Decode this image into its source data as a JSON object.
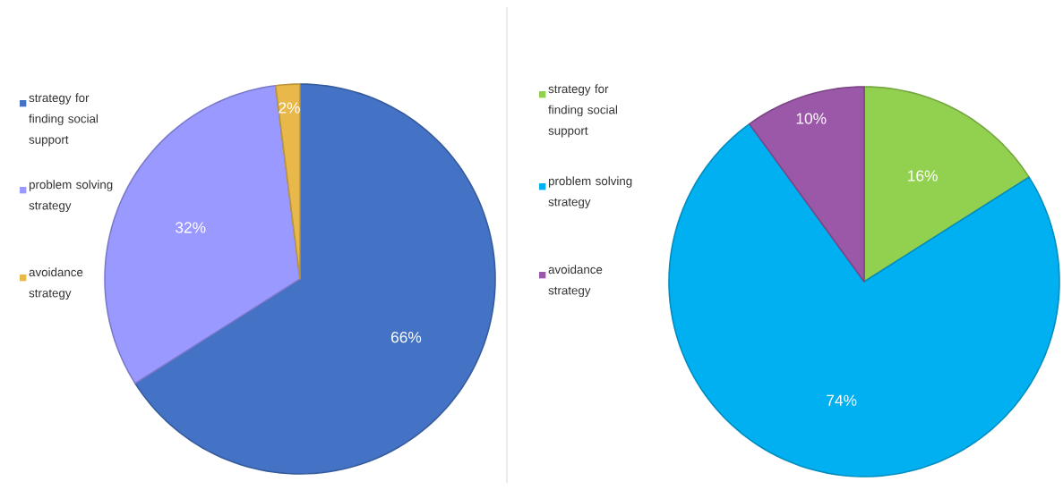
{
  "chart_data": [
    {
      "type": "pie",
      "categories": [
        "strategy for finding social support",
        "problem solving strategy",
        "avoidance strategy"
      ],
      "values": [
        66,
        32,
        2
      ],
      "colors": [
        "#4472c4",
        "#9999ff",
        "#e8b84a"
      ],
      "value_labels": [
        "66%",
        "32%",
        "2%"
      ],
      "legend": "left"
    },
    {
      "type": "pie",
      "categories": [
        "strategy for finding social support",
        "problem solving strategy",
        "avoidance strategy"
      ],
      "values": [
        16,
        74,
        10
      ],
      "colors": [
        "#92d050",
        "#00b0f0",
        "#9b57a8"
      ],
      "value_labels": [
        "16%",
        "74%",
        "10%"
      ],
      "legend": "left"
    }
  ]
}
